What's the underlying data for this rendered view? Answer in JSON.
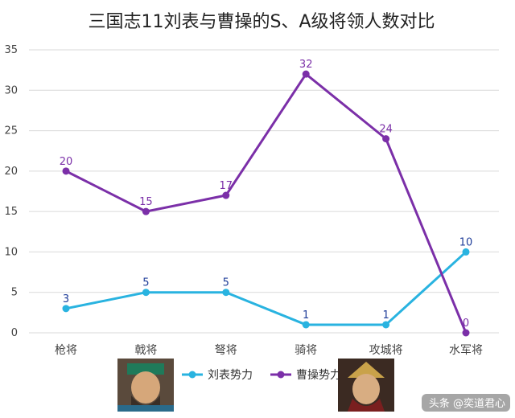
{
  "chart_data": {
    "type": "line",
    "title": "三国志11刘表与曹操的S、A级将领人数对比",
    "xlabel": "",
    "ylabel": "",
    "categories": [
      "枪将",
      "戟将",
      "弩将",
      "骑将",
      "攻城将",
      "水军将"
    ],
    "ylim": [
      0,
      35
    ],
    "yticks": [
      0,
      5,
      10,
      15,
      20,
      25,
      30,
      35
    ],
    "grid": true,
    "legend_position": "bottom",
    "series": [
      {
        "name": "刘表势力",
        "values": [
          3,
          5,
          5,
          1,
          1,
          10
        ],
        "color": "#29b3e0",
        "label_color": "#1f3d99"
      },
      {
        "name": "曹操势力",
        "values": [
          20,
          15,
          17,
          32,
          24,
          0
        ],
        "color": "#7b2fa8",
        "label_color": "#7b2fa8"
      }
    ]
  },
  "legend": {
    "left_portrait_icon": "liu-biao-portrait",
    "right_portrait_icon": "cao-cao-portrait"
  },
  "watermark": {
    "text": "头条 @奕道君心"
  }
}
